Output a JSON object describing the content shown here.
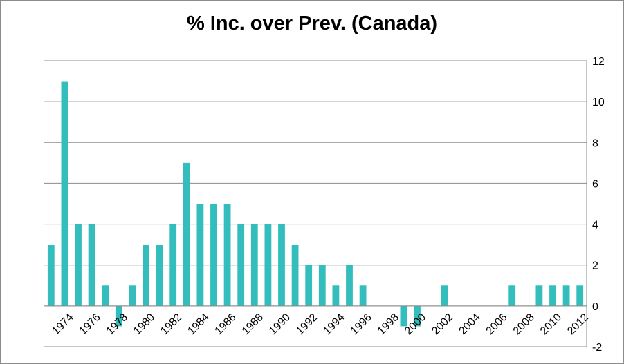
{
  "chart_data": {
    "type": "bar",
    "title": "% Inc. over Prev. (Canada)",
    "xlabel": "",
    "ylabel": "",
    "ylim": [
      -2,
      12
    ],
    "yticks": [
      -2,
      0,
      2,
      4,
      6,
      8,
      10,
      12
    ],
    "y_axis_side": "right",
    "grid": true,
    "legend": "none",
    "bar_color": "#33BDBD",
    "categories": [
      "1973",
      "1974",
      "1975",
      "1976",
      "1977",
      "1978",
      "1979",
      "1980",
      "1981",
      "1982",
      "1983",
      "1984",
      "1985",
      "1986",
      "1987",
      "1988",
      "1989",
      "1990",
      "1991",
      "1992",
      "1993",
      "1994",
      "1995",
      "1996",
      "1997",
      "1998",
      "1999",
      "2000",
      "2001",
      "2002",
      "2003",
      "2004",
      "2005",
      "2006",
      "2007",
      "2008",
      "2009",
      "2010",
      "2011",
      "2012"
    ],
    "x_tick_labels": [
      "1974",
      "1976",
      "1978",
      "1980",
      "1982",
      "1984",
      "1986",
      "1988",
      "1990",
      "1992",
      "1994",
      "1996",
      "1998",
      "2000",
      "2002",
      "2004",
      "2006",
      "2008",
      "2010",
      "2012"
    ],
    "values": [
      3,
      11,
      4,
      4,
      1,
      -1,
      1,
      3,
      3,
      4,
      7,
      5,
      5,
      5,
      4,
      4,
      4,
      4,
      3,
      2,
      2,
      1,
      2,
      1,
      0,
      0,
      -1,
      -1,
      0,
      1,
      0,
      0,
      0,
      0,
      1,
      0,
      1,
      1,
      1,
      1
    ]
  }
}
